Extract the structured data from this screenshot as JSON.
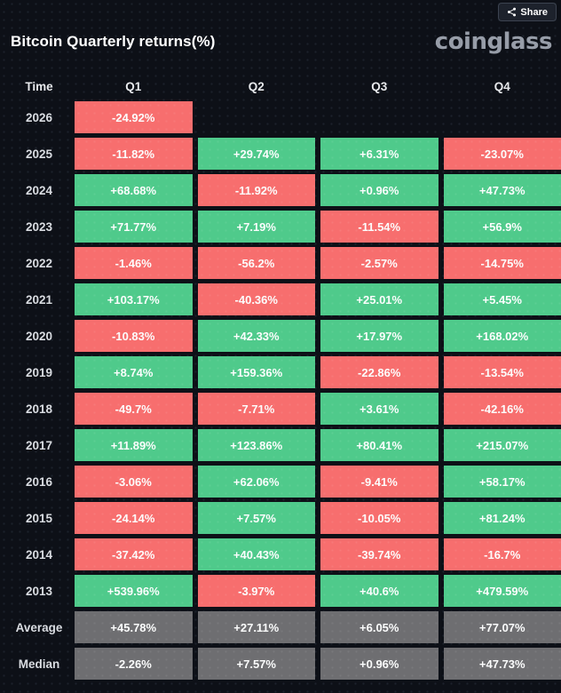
{
  "header": {
    "share_label": "Share",
    "title": "Bitcoin Quarterly returns(%)",
    "brand": "coinglass"
  },
  "colors": {
    "positive": "#4fca8b",
    "negative": "#f76e6e",
    "neutral": "#6e6e71",
    "background": "#0d1017",
    "cell_text": "#fcfdfd"
  },
  "chart_data": {
    "type": "heatmap",
    "title": "Bitcoin Quarterly returns(%)",
    "unit": "%",
    "columns": [
      "Time",
      "Q1",
      "Q2",
      "Q3",
      "Q4"
    ],
    "legend": "green = positive quarterly return, red = negative quarterly return, gray = summary rows",
    "rows": [
      {
        "label": "2026",
        "summary": false,
        "values": [
          "-24.92%",
          null,
          null,
          null
        ]
      },
      {
        "label": "2025",
        "summary": false,
        "values": [
          "-11.82%",
          "+29.74%",
          "+6.31%",
          "-23.07%"
        ]
      },
      {
        "label": "2024",
        "summary": false,
        "values": [
          "+68.68%",
          "-11.92%",
          "+0.96%",
          "+47.73%"
        ]
      },
      {
        "label": "2023",
        "summary": false,
        "values": [
          "+71.77%",
          "+7.19%",
          "-11.54%",
          "+56.9%"
        ]
      },
      {
        "label": "2022",
        "summary": false,
        "values": [
          "-1.46%",
          "-56.2%",
          "-2.57%",
          "-14.75%"
        ]
      },
      {
        "label": "2021",
        "summary": false,
        "values": [
          "+103.17%",
          "-40.36%",
          "+25.01%",
          "+5.45%"
        ]
      },
      {
        "label": "2020",
        "summary": false,
        "values": [
          "-10.83%",
          "+42.33%",
          "+17.97%",
          "+168.02%"
        ]
      },
      {
        "label": "2019",
        "summary": false,
        "values": [
          "+8.74%",
          "+159.36%",
          "-22.86%",
          "-13.54%"
        ]
      },
      {
        "label": "2018",
        "summary": false,
        "values": [
          "-49.7%",
          "-7.71%",
          "+3.61%",
          "-42.16%"
        ]
      },
      {
        "label": "2017",
        "summary": false,
        "values": [
          "+11.89%",
          "+123.86%",
          "+80.41%",
          "+215.07%"
        ]
      },
      {
        "label": "2016",
        "summary": false,
        "values": [
          "-3.06%",
          "+62.06%",
          "-9.41%",
          "+58.17%"
        ]
      },
      {
        "label": "2015",
        "summary": false,
        "values": [
          "-24.14%",
          "+7.57%",
          "-10.05%",
          "+81.24%"
        ]
      },
      {
        "label": "2014",
        "summary": false,
        "values": [
          "-37.42%",
          "+40.43%",
          "-39.74%",
          "-16.7%"
        ]
      },
      {
        "label": "2013",
        "summary": false,
        "values": [
          "+539.96%",
          "-3.97%",
          "+40.6%",
          "+479.59%"
        ]
      },
      {
        "label": "Average",
        "summary": true,
        "values": [
          "+45.78%",
          "+27.11%",
          "+6.05%",
          "+77.07%"
        ]
      },
      {
        "label": "Median",
        "summary": true,
        "values": [
          "-2.26%",
          "+7.57%",
          "+0.96%",
          "+47.73%"
        ]
      }
    ]
  }
}
